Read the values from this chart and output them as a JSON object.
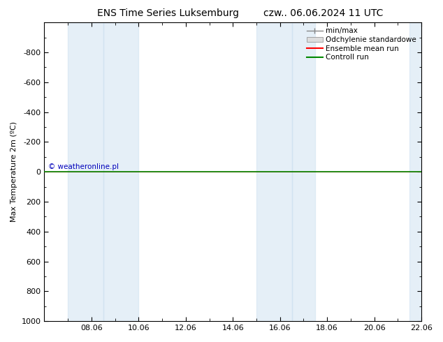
{
  "title_left": "ENS Time Series Luksemburg",
  "title_right": "czw.. 06.06.2024 11 UTC",
  "ylabel": "Max Temperature 2m (ºC)",
  "ylim_top": -1000,
  "ylim_bottom": 1000,
  "yticks": [
    -800,
    -600,
    -400,
    -200,
    0,
    200,
    400,
    600,
    800,
    1000
  ],
  "xlim": [
    0,
    16
  ],
  "xtick_labels": [
    "08.06",
    "10.06",
    "12.06",
    "14.06",
    "16.06",
    "18.06",
    "20.06",
    "22.06"
  ],
  "xtick_positions": [
    2,
    4,
    6,
    8,
    10,
    12,
    14,
    16
  ],
  "shade_columns": [
    {
      "x_start": 1.0,
      "x_end": 2.5
    },
    {
      "x_start": 2.5,
      "x_end": 4.0
    },
    {
      "x_start": 9.0,
      "x_end": 10.5
    },
    {
      "x_start": 10.5,
      "x_end": 11.5
    },
    {
      "x_start": 15.5,
      "x_end": 16.0
    }
  ],
  "shade_color": "#cce0f0",
  "shade_alpha": 0.5,
  "line_y_value": 0,
  "ensemble_mean_color": "#ff0000",
  "control_run_color": "#008800",
  "minmax_color": "#888888",
  "std_color": "#cccccc",
  "watermark": "© weatheronline.pl",
  "watermark_color": "#0000bb",
  "background_color": "#ffffff",
  "legend_entries": [
    "min/max",
    "Odchylenie standardowe",
    "Ensemble mean run",
    "Controll run"
  ],
  "title_fontsize": 10,
  "axis_fontsize": 8,
  "tick_fontsize": 8,
  "legend_fontsize": 7.5
}
